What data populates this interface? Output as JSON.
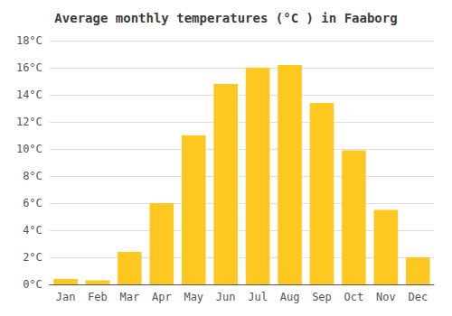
{
  "chart_data": {
    "type": "bar",
    "title": "Average monthly temperatures (°C ) in Faaborg",
    "categories": [
      "Jan",
      "Feb",
      "Mar",
      "Apr",
      "May",
      "Jun",
      "Jul",
      "Aug",
      "Sep",
      "Oct",
      "Nov",
      "Dec"
    ],
    "values": [
      0.4,
      0.3,
      2.4,
      6.0,
      11.0,
      14.8,
      16.0,
      16.2,
      13.4,
      9.9,
      5.5,
      2.0
    ],
    "color": "#FFC820",
    "ylim": [
      0,
      18
    ],
    "yticks": [
      {
        "value": 0,
        "label": "0°C"
      },
      {
        "value": 2,
        "label": "2°C"
      },
      {
        "value": 4,
        "label": "4°C"
      },
      {
        "value": 6,
        "label": "6°C"
      },
      {
        "value": 8,
        "label": "8°C"
      },
      {
        "value": 10,
        "label": "10°C"
      },
      {
        "value": 12,
        "label": "12°C"
      },
      {
        "value": 14,
        "label": "14°C"
      },
      {
        "value": 16,
        "label": "16°C"
      },
      {
        "value": 18,
        "label": "18°C"
      }
    ],
    "grid": true
  }
}
